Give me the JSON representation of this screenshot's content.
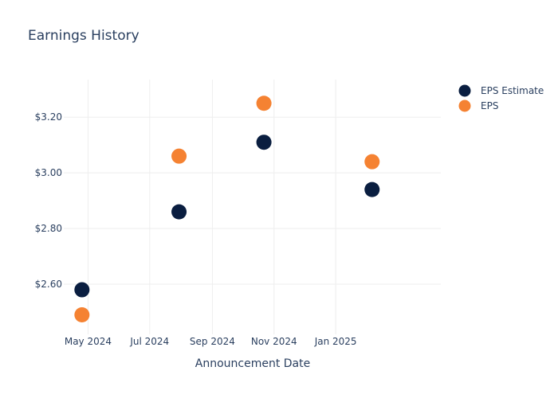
{
  "chart_data": {
    "type": "scatter",
    "title": "Earnings History",
    "xlabel": "Announcement Date",
    "ylabel": "",
    "x_axis": {
      "type": "date",
      "range": [
        "2024-04-07",
        "2025-04-15"
      ],
      "ticks": [
        {
          "date": "2024-05-01",
          "label": "May 2024"
        },
        {
          "date": "2024-07-01",
          "label": "Jul 2024"
        },
        {
          "date": "2024-09-01",
          "label": "Sep 2024"
        },
        {
          "date": "2024-11-01",
          "label": "Nov 2024"
        },
        {
          "date": "2025-01-01",
          "label": "Jan 2025"
        }
      ]
    },
    "y_axis": {
      "range": [
        2.42,
        3.335
      ],
      "ticks": [
        {
          "value": 2.6,
          "label": "$2.60"
        },
        {
          "value": 2.8,
          "label": "$2.80"
        },
        {
          "value": 3.0,
          "label": "$3.00"
        },
        {
          "value": 3.2,
          "label": "$3.20"
        }
      ]
    },
    "grid": true,
    "legend_position": "top-right",
    "series": [
      {
        "name": "EPS Estimate",
        "color": "#0a1e40",
        "points": [
          {
            "x": "2024-04-25",
            "y": 2.58
          },
          {
            "x": "2024-07-30",
            "y": 2.86
          },
          {
            "x": "2024-10-22",
            "y": 3.11
          },
          {
            "x": "2025-02-06",
            "y": 2.94
          }
        ]
      },
      {
        "name": "EPS",
        "color": "#f58232",
        "points": [
          {
            "x": "2024-04-25",
            "y": 2.49
          },
          {
            "x": "2024-07-30",
            "y": 3.06
          },
          {
            "x": "2024-10-22",
            "y": 3.25
          },
          {
            "x": "2025-02-06",
            "y": 3.04
          }
        ]
      }
    ]
  }
}
